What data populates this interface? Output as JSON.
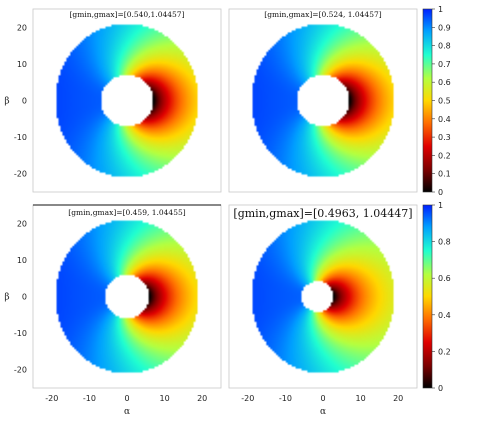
{
  "chart_data": {
    "type": "heatmap",
    "colormap": "jet",
    "panels": [
      {
        "title": "[gmin,gmax]=[0.540,1.04457]",
        "gmin": 0.54,
        "gmax": 1.04457,
        "shadow_center": [
          0,
          0
        ],
        "shadow_radius": 7.0
      },
      {
        "title": "[gmin,gmax]=[0.524, 1.04457]",
        "gmin": 0.524,
        "gmax": 1.04457,
        "shadow_center": [
          0,
          0
        ],
        "shadow_radius": 7.0
      },
      {
        "title": "[gmin,gmax]=[0.459, 1.04455]",
        "gmin": 0.459,
        "gmax": 1.04455,
        "shadow_center": [
          0,
          0
        ],
        "shadow_radius": 5.9
      },
      {
        "title": "[gmin,gmax]=[0.4963, 1.04447]",
        "gmin": 0.4963,
        "gmax": 1.04447,
        "shadow_center": [
          -1.5,
          0
        ],
        "shadow_radius": 4.2
      }
    ],
    "disk_semi_axes": [
      19,
      21
    ],
    "xlabel": "α",
    "ylabel": "β",
    "x_ticks": [
      "-20",
      "-10",
      "0",
      "10",
      "20"
    ],
    "y_ticks": [
      "20",
      "10",
      "0",
      "-10",
      "-20"
    ],
    "xlim": [
      -25,
      25
    ],
    "ylim": [
      -25,
      25
    ],
    "colorbar_top": {
      "range": [
        0,
        1
      ],
      "ticks": [
        "1",
        "0.9",
        "0.8",
        "0.7",
        "0.6",
        "0.5",
        "0.4",
        "0.3",
        "0.2",
        "0.1",
        "0"
      ]
    },
    "colorbar_bottom": {
      "range": [
        0,
        1
      ],
      "ticks": [
        "1",
        "0.8",
        "0.6",
        "0.4",
        "0.2",
        "0"
      ]
    }
  }
}
